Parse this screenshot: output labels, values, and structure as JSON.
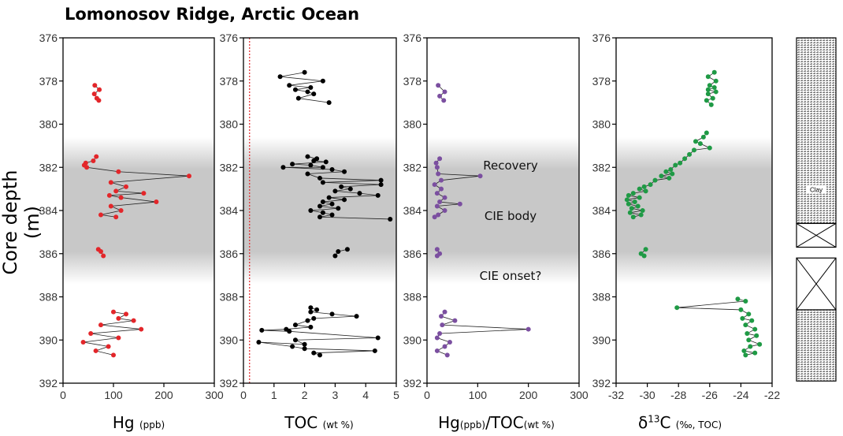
{
  "title": "Lomonosov Ridge, Arctic Ocean",
  "ylabel": "Core depth (m)",
  "annotations": [
    "Recovery",
    "CIE body",
    "CIE onset?"
  ],
  "lithology_label": "Clay",
  "chart_data": [
    {
      "type": "scatter",
      "xlabel_main": "Hg",
      "xlabel_unit": "(ppb)",
      "xlim": [
        0,
        300
      ],
      "xticks": [
        0,
        100,
        200,
        300
      ],
      "ylim": [
        392,
        376
      ],
      "yticks": [
        376,
        378,
        380,
        382,
        384,
        386,
        388,
        390,
        392
      ],
      "color": "#e3262a",
      "series": [
        {
          "points": [
            [
              63,
              378.2
            ],
            [
              72,
              378.4
            ],
            [
              62,
              378.6
            ],
            [
              67,
              378.8
            ],
            [
              71,
              378.9
            ]
          ]
        },
        {
          "points": [
            [
              66,
              381.5
            ],
            [
              60,
              381.7
            ],
            [
              45,
              381.8
            ],
            [
              42,
              381.9
            ],
            [
              47,
              382.0
            ],
            [
              110,
              382.2
            ],
            [
              250,
              382.4
            ],
            [
              95,
              382.7
            ],
            [
              125,
              382.9
            ],
            [
              105,
              383.1
            ],
            [
              160,
              383.2
            ],
            [
              92,
              383.3
            ],
            [
              115,
              383.4
            ],
            [
              185,
              383.6
            ],
            [
              95,
              383.8
            ],
            [
              115,
              384.0
            ],
            [
              75,
              384.2
            ],
            [
              105,
              384.3
            ]
          ]
        },
        {
          "points": [
            [
              70,
              385.8
            ],
            [
              75,
              385.9
            ],
            [
              80,
              386.1
            ]
          ]
        },
        {
          "points": [
            [
              100,
              388.7
            ],
            [
              125,
              388.8
            ],
            [
              110,
              389.0
            ],
            [
              140,
              389.1
            ],
            [
              75,
              389.3
            ],
            [
              155,
              389.5
            ],
            [
              55,
              389.7
            ],
            [
              110,
              389.9
            ],
            [
              40,
              390.1
            ],
            [
              90,
              390.3
            ],
            [
              65,
              390.5
            ],
            [
              100,
              390.7
            ]
          ]
        }
      ],
      "ref_line": {
        "x": 0.2,
        "color": "#e3262a"
      }
    },
    {
      "type": "scatter",
      "xlabel_main": "TOC",
      "xlabel_unit": "(wt %)",
      "xlim": [
        0,
        5
      ],
      "xticks": [
        0,
        1,
        2,
        3,
        4,
        5
      ],
      "ylim": [
        392,
        376
      ],
      "yticks": [
        376,
        378,
        380,
        382,
        384,
        386,
        388,
        390,
        392
      ],
      "color": "#000000",
      "ref_line": {
        "x": 0.2,
        "color": "#e3262a"
      },
      "series": [
        {
          "points": [
            [
              2.0,
              377.6
            ],
            [
              1.2,
              377.8
            ],
            [
              2.6,
              378.0
            ],
            [
              1.5,
              378.2
            ],
            [
              2.2,
              378.3
            ],
            [
              1.7,
              378.4
            ],
            [
              2.1,
              378.5
            ],
            [
              2.3,
              378.6
            ],
            [
              1.8,
              378.8
            ],
            [
              2.8,
              379.0
            ]
          ]
        },
        {
          "points": [
            [
              2.1,
              381.5
            ],
            [
              2.4,
              381.6
            ],
            [
              2.3,
              381.7
            ],
            [
              2.7,
              381.75
            ],
            [
              1.6,
              381.85
            ],
            [
              2.2,
              381.9
            ],
            [
              2.6,
              382.0
            ],
            [
              1.3,
              382.0
            ],
            [
              2.9,
              382.1
            ],
            [
              3.3,
              382.2
            ],
            [
              2.1,
              382.3
            ],
            [
              2.5,
              382.5
            ],
            [
              4.5,
              382.6
            ],
            [
              2.6,
              382.7
            ],
            [
              4.5,
              382.8
            ],
            [
              3.2,
              382.9
            ],
            [
              3.5,
              383.0
            ],
            [
              3.0,
              383.1
            ],
            [
              3.8,
              383.2
            ],
            [
              4.4,
              383.3
            ],
            [
              2.8,
              383.4
            ],
            [
              3.3,
              383.5
            ],
            [
              2.6,
              383.6
            ],
            [
              2.9,
              383.7
            ],
            [
              2.5,
              383.8
            ],
            [
              3.1,
              383.9
            ],
            [
              2.2,
              384.0
            ],
            [
              2.6,
              384.1
            ],
            [
              2.9,
              384.2
            ],
            [
              2.5,
              384.3
            ],
            [
              4.8,
              384.4
            ]
          ]
        },
        {
          "points": [
            [
              3.4,
              385.8
            ],
            [
              3.1,
              385.9
            ],
            [
              3.0,
              386.1
            ]
          ]
        },
        {
          "points": [
            [
              2.2,
              388.5
            ],
            [
              2.4,
              388.6
            ],
            [
              2.2,
              388.7
            ],
            [
              2.9,
              388.8
            ],
            [
              3.7,
              388.9
            ],
            [
              2.3,
              389.0
            ],
            [
              2.1,
              389.1
            ],
            [
              1.7,
              389.3
            ],
            [
              2.2,
              389.4
            ],
            [
              1.4,
              389.5
            ],
            [
              0.6,
              389.55
            ],
            [
              1.5,
              389.6
            ],
            [
              4.4,
              389.9
            ],
            [
              1.7,
              390.0
            ],
            [
              2.0,
              390.2
            ],
            [
              0.5,
              390.1
            ],
            [
              1.6,
              390.3
            ],
            [
              2.0,
              390.4
            ],
            [
              4.3,
              390.5
            ],
            [
              2.3,
              390.6
            ],
            [
              2.5,
              390.7
            ]
          ]
        }
      ]
    },
    {
      "type": "scatter",
      "xlabel_main": "Hg",
      "xlabel_unit": "(ppb)",
      "xlabel_mid": "/TOC",
      "xlabel_unit2": "(wt %)",
      "xlim": [
        0,
        300
      ],
      "xticks": [
        0,
        100,
        200,
        300
      ],
      "ylim": [
        392,
        376
      ],
      "yticks": [
        376,
        378,
        380,
        382,
        384,
        386,
        388,
        390,
        392
      ],
      "color": "#7b4fa0",
      "series": [
        {
          "points": [
            [
              22,
              378.2
            ],
            [
              35,
              378.5
            ],
            [
              25,
              378.7
            ],
            [
              33,
              378.9
            ]
          ]
        },
        {
          "points": [
            [
              25,
              381.6
            ],
            [
              18,
              381.8
            ],
            [
              20,
              382.0
            ],
            [
              22,
              382.3
            ],
            [
              105,
              382.4
            ],
            [
              28,
              382.6
            ],
            [
              15,
              382.8
            ],
            [
              28,
              383.0
            ],
            [
              20,
              383.2
            ],
            [
              35,
              383.4
            ],
            [
              25,
              383.6
            ],
            [
              65,
              383.7
            ],
            [
              20,
              383.8
            ],
            [
              35,
              384.0
            ],
            [
              22,
              384.2
            ],
            [
              15,
              384.3
            ]
          ]
        },
        {
          "points": [
            [
              20,
              385.8
            ],
            [
              25,
              386.0
            ],
            [
              20,
              386.1
            ]
          ]
        },
        {
          "points": [
            [
              35,
              388.7
            ],
            [
              28,
              388.9
            ],
            [
              55,
              389.1
            ],
            [
              30,
              389.3
            ],
            [
              200,
              389.5
            ],
            [
              25,
              389.7
            ],
            [
              20,
              389.9
            ],
            [
              45,
              390.1
            ],
            [
              35,
              390.3
            ],
            [
              20,
              390.5
            ],
            [
              40,
              390.7
            ]
          ]
        }
      ]
    },
    {
      "type": "scatter",
      "xlabel_main": "δ",
      "xlabel_sup": "13",
      "xlabel_after": "C",
      "xlabel_unit": "(‰, TOC)",
      "xlim": [
        -32,
        -22
      ],
      "xticks": [
        -32,
        -30,
        -28,
        -26,
        -24,
        -22
      ],
      "ylim": [
        392,
        376
      ],
      "yticks": [
        376,
        378,
        380,
        382,
        384,
        386,
        388,
        390,
        392
      ],
      "color": "#1f9a45",
      "series": [
        {
          "points": [
            [
              -25.7,
              377.6
            ],
            [
              -26.1,
              377.8
            ],
            [
              -25.6,
              378.0
            ],
            [
              -26.0,
              378.2
            ],
            [
              -25.7,
              378.3
            ],
            [
              -26.1,
              378.4
            ],
            [
              -25.6,
              378.5
            ],
            [
              -26.1,
              378.6
            ],
            [
              -25.8,
              378.8
            ],
            [
              -26.2,
              378.9
            ],
            [
              -25.9,
              379.1
            ]
          ]
        },
        {
          "points": [
            [
              -26.2,
              380.4
            ],
            [
              -26.4,
              380.6
            ],
            [
              -26.9,
              380.8
            ],
            [
              -26.6,
              380.9
            ],
            [
              -26.0,
              381.1
            ],
            [
              -27.0,
              381.2
            ],
            [
              -27.3,
              381.4
            ],
            [
              -27.6,
              381.6
            ],
            [
              -27.9,
              381.8
            ],
            [
              -28.2,
              381.9
            ],
            [
              -28.5,
              382.1
            ],
            [
              -28.8,
              382.2
            ],
            [
              -28.4,
              382.3
            ],
            [
              -29.1,
              382.4
            ],
            [
              -28.6,
              382.5
            ],
            [
              -29.5,
              382.6
            ],
            [
              -29.8,
              382.8
            ],
            [
              -30.2,
              382.9
            ],
            [
              -30.5,
              383.0
            ],
            [
              -30.1,
              383.1
            ],
            [
              -30.9,
              383.2
            ],
            [
              -31.2,
              383.3
            ],
            [
              -30.5,
              383.4
            ],
            [
              -31.3,
              383.5
            ],
            [
              -30.8,
              383.6
            ],
            [
              -31.2,
              383.7
            ],
            [
              -30.6,
              383.8
            ],
            [
              -31.0,
              383.9
            ],
            [
              -30.3,
              384.0
            ],
            [
              -31.1,
              384.1
            ],
            [
              -30.4,
              384.2
            ],
            [
              -30.9,
              384.3
            ]
          ]
        },
        {
          "points": [
            [
              -30.1,
              385.8
            ],
            [
              -30.4,
              386.0
            ],
            [
              -30.2,
              386.1
            ]
          ]
        },
        {
          "points": [
            [
              -24.2,
              388.1
            ],
            [
              -23.7,
              388.2
            ],
            [
              -28.1,
              388.5
            ],
            [
              -24.0,
              388.6
            ],
            [
              -23.5,
              388.8
            ],
            [
              -23.9,
              389.0
            ],
            [
              -23.3,
              389.1
            ],
            [
              -23.7,
              389.3
            ],
            [
              -23.1,
              389.5
            ],
            [
              -23.6,
              389.7
            ],
            [
              -23.0,
              389.8
            ],
            [
              -23.5,
              390.0
            ],
            [
              -22.8,
              390.2
            ],
            [
              -23.4,
              390.3
            ],
            [
              -23.8,
              390.5
            ],
            [
              -23.1,
              390.6
            ],
            [
              -23.7,
              390.7
            ]
          ]
        }
      ]
    }
  ]
}
